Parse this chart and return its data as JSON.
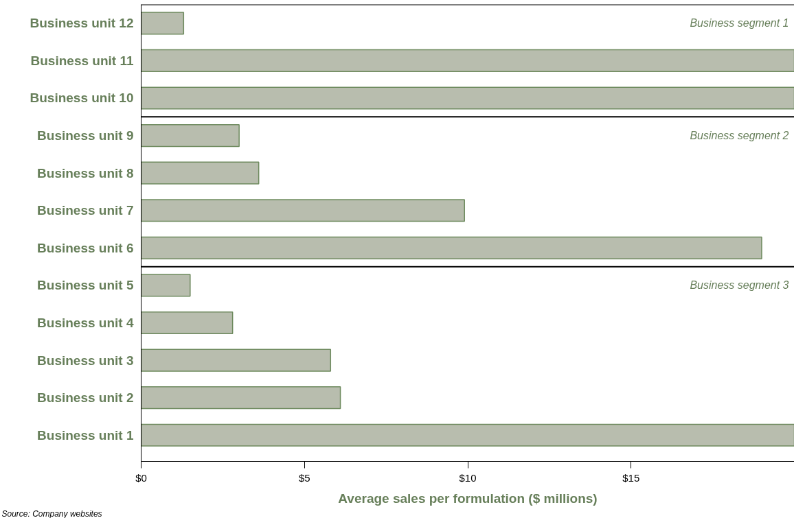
{
  "chart_data": {
    "type": "bar",
    "orientation": "horizontal",
    "categories": [
      "Business unit 12",
      "Business unit 11",
      "Business unit 10",
      "Business unit 9",
      "Business unit 8",
      "Business unit 7",
      "Business unit 6",
      "Business unit 5",
      "Business unit 4",
      "Business unit 3",
      "Business unit 2",
      "Business unit 1"
    ],
    "values": [
      1.3,
      20,
      20,
      3.0,
      3.6,
      9.9,
      19.0,
      1.5,
      2.8,
      5.8,
      6.1,
      20
    ],
    "color": "#b8bdae",
    "xlabel": "Average sales per formulation ($ millions)",
    "xlim": [
      0,
      20
    ],
    "xticks": [
      {
        "value": 0,
        "label": "$0"
      },
      {
        "value": 5,
        "label": "$5"
      },
      {
        "value": 10,
        "label": "$10"
      },
      {
        "value": 15,
        "label": "$15"
      },
      {
        "value": 20,
        "label": null
      }
    ],
    "annotations": [
      "Business segment 1",
      "Business segment 2",
      "Business segment 3",
      "Source: Company websites"
    ],
    "grid": false
  }
}
